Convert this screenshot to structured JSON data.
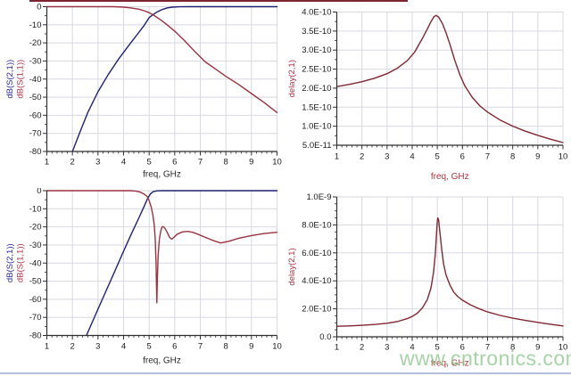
{
  "watermark": {
    "text": "www.cntronics.com",
    "color": "#92cb92"
  },
  "decor": {
    "top_line_color": "#7c2430",
    "bottom_line_color": "#b3bedd"
  },
  "colors": {
    "grid": "#d8d8e2",
    "axis": "#2f2f2f",
    "tick_text": "#1a1a1a",
    "trace_blue": "#1f1f78",
    "trace_red": "#9b3242",
    "trace_maroon": "#822633",
    "label_blue": "#2a2aa0",
    "label_red": "#b33044",
    "freq_label_dark": "#2b2b2b",
    "freq_label_red": "#b8323e"
  },
  "chart_data": [
    {
      "id": "highpass1-sparams",
      "type": "line",
      "xlabel": "freq, GHz",
      "xlabel_color": "#2b2b2b",
      "ylabels": [
        {
          "text": "dB(S(2,1))",
          "color": "#2a2aa0"
        },
        {
          "text": "dB(S(1,1))",
          "color": "#b33044"
        }
      ],
      "xlim": [
        1,
        10
      ],
      "ylim": [
        -80,
        0
      ],
      "grid": true,
      "xticks": [
        1,
        2,
        3,
        4,
        5,
        6,
        7,
        8,
        9,
        10
      ],
      "minor_x": 0.2,
      "minor_y": 5,
      "yticks": [
        {
          "v": 0,
          "label": "0"
        },
        {
          "v": -10,
          "label": "-10"
        },
        {
          "v": -20,
          "label": "-20"
        },
        {
          "v": -30,
          "label": "-30"
        },
        {
          "v": -40,
          "label": "-40"
        },
        {
          "v": -50,
          "label": "-50"
        },
        {
          "v": -60,
          "label": "-60"
        },
        {
          "v": -70,
          "label": "-70"
        },
        {
          "v": -80,
          "label": "-80"
        }
      ],
      "series": [
        {
          "name": "dB(S(2,1))",
          "color": "#1f1f78",
          "points": [
            [
              2.0,
              -80
            ],
            [
              2.3,
              -69
            ],
            [
              2.6,
              -58.5
            ],
            [
              3.0,
              -47
            ],
            [
              3.4,
              -37.5
            ],
            [
              3.8,
              -29
            ],
            [
              4.2,
              -21.5
            ],
            [
              4.5,
              -16
            ],
            [
              4.8,
              -10.5
            ],
            [
              5.0,
              -6
            ],
            [
              5.15,
              -4.4
            ],
            [
              5.3,
              -3.0
            ],
            [
              5.5,
              -1.6
            ],
            [
              5.7,
              -0.7
            ],
            [
              5.9,
              -0.25
            ],
            [
              6.2,
              -0.05
            ],
            [
              6.6,
              0
            ],
            [
              10,
              0
            ]
          ]
        },
        {
          "name": "dB(S(1,1))",
          "color": "#9b3242",
          "points": [
            [
              1,
              0
            ],
            [
              3.6,
              0
            ],
            [
              4.0,
              -0.25
            ],
            [
              4.3,
              -0.7
            ],
            [
              4.6,
              -1.4
            ],
            [
              4.8,
              -2.2
            ],
            [
              5.0,
              -3.3
            ],
            [
              5.2,
              -4.9
            ],
            [
              5.45,
              -7.3
            ],
            [
              5.7,
              -10
            ],
            [
              6.0,
              -13.5
            ],
            [
              6.4,
              -19
            ],
            [
              6.8,
              -25
            ],
            [
              7.2,
              -30.5
            ],
            [
              7.6,
              -34.5
            ],
            [
              8.0,
              -38.5
            ],
            [
              8.5,
              -43
            ],
            [
              9.0,
              -48
            ],
            [
              9.5,
              -53
            ],
            [
              10,
              -58.5
            ]
          ]
        }
      ]
    },
    {
      "id": "highpass1-delay",
      "type": "line",
      "xlabel": "freq, GHz",
      "xlabel_color": "#b8323e",
      "ylabels": [
        {
          "text": "delay(2,1)",
          "color": "#b33044"
        }
      ],
      "xlim": [
        1,
        10
      ],
      "ylim": [
        5e-11,
        4e-10
      ],
      "grid": true,
      "xticks": [
        1,
        2,
        3,
        4,
        5,
        6,
        7,
        8,
        9,
        10
      ],
      "minor_x": 0.2,
      "minor_y": 2.5e-11,
      "yticks": [
        {
          "v": 4e-10,
          "label": "4.0E-10"
        },
        {
          "v": 3.5e-10,
          "label": "3.5E-10"
        },
        {
          "v": 3e-10,
          "label": "3.0E-10"
        },
        {
          "v": 2.5e-10,
          "label": "2.5E-10"
        },
        {
          "v": 2e-10,
          "label": "2.0E-10"
        },
        {
          "v": 1.5e-10,
          "label": "1.5E-10"
        },
        {
          "v": 1e-10,
          "label": "1.0E-10"
        },
        {
          "v": 5e-11,
          "label": "5.0E-11"
        }
      ],
      "series": [
        {
          "name": "delay(2,1)",
          "color": "#822633",
          "points": [
            [
              1,
              2.04e-10
            ],
            [
              1.5,
              2.1e-10
            ],
            [
              2,
              2.17e-10
            ],
            [
              2.5,
              2.26e-10
            ],
            [
              3,
              2.38e-10
            ],
            [
              3.4,
              2.52e-10
            ],
            [
              3.8,
              2.72e-10
            ],
            [
              4.1,
              2.95e-10
            ],
            [
              4.4,
              3.3e-10
            ],
            [
              4.6,
              3.55e-10
            ],
            [
              4.75,
              3.75e-10
            ],
            [
              4.87,
              3.88e-10
            ],
            [
              4.95,
              3.91e-10
            ],
            [
              5.05,
              3.87e-10
            ],
            [
              5.2,
              3.7e-10
            ],
            [
              5.35,
              3.45e-10
            ],
            [
              5.5,
              3.15e-10
            ],
            [
              5.7,
              2.72e-10
            ],
            [
              5.9,
              2.35e-10
            ],
            [
              6.1,
              2.05e-10
            ],
            [
              6.4,
              1.75e-10
            ],
            [
              6.7,
              1.53e-10
            ],
            [
              7,
              1.37e-10
            ],
            [
              7.5,
              1.16e-10
            ],
            [
              8,
              1e-10
            ],
            [
              8.5,
              8.7e-11
            ],
            [
              9,
              7.6e-11
            ],
            [
              9.5,
              6.6e-11
            ],
            [
              10,
              5.7e-11
            ]
          ]
        }
      ]
    },
    {
      "id": "highpass2-sparams",
      "type": "line",
      "xlabel": "freq, GHz",
      "xlabel_color": "#2b2b2b",
      "ylabels": [
        {
          "text": "dB(S(2,1))",
          "color": "#2a2aa0"
        },
        {
          "text": "dB(S(1,1))",
          "color": "#b33044"
        }
      ],
      "xlim": [
        1,
        10
      ],
      "ylim": [
        -80,
        0
      ],
      "grid": true,
      "xticks": [
        1,
        2,
        3,
        4,
        5,
        6,
        7,
        8,
        9,
        10
      ],
      "minor_x": 0.2,
      "minor_y": 5,
      "yticks": [
        {
          "v": 0,
          "label": "0"
        },
        {
          "v": -10,
          "label": "-10"
        },
        {
          "v": -20,
          "label": "-20"
        },
        {
          "v": -30,
          "label": "-30"
        },
        {
          "v": -40,
          "label": "-40"
        },
        {
          "v": -50,
          "label": "-50"
        },
        {
          "v": -60,
          "label": "-60"
        },
        {
          "v": -70,
          "label": "-70"
        },
        {
          "v": -80,
          "label": "-80"
        }
      ],
      "series": [
        {
          "name": "dB(S(2,1))",
          "color": "#1f1f78",
          "points": [
            [
              2.55,
              -80
            ],
            [
              3.0,
              -65.5
            ],
            [
              3.5,
              -49.5
            ],
            [
              4.0,
              -33.5
            ],
            [
              4.3,
              -24
            ],
            [
              4.6,
              -15
            ],
            [
              4.8,
              -8.8
            ],
            [
              4.95,
              -4
            ],
            [
              5.05,
              -1.8
            ],
            [
              5.15,
              -0.6
            ],
            [
              5.3,
              -0.1
            ],
            [
              5.5,
              0
            ],
            [
              10,
              0
            ]
          ]
        },
        {
          "name": "dB(S(1,1))",
          "color": "#9b3242",
          "points": [
            [
              1,
              0
            ],
            [
              4.3,
              0
            ],
            [
              4.5,
              -0.3
            ],
            [
              4.65,
              -0.8
            ],
            [
              4.8,
              -1.8
            ],
            [
              4.92,
              -3.2
            ],
            [
              5.0,
              -5.5
            ],
            [
              5.08,
              -9
            ],
            [
              5.15,
              -14
            ],
            [
              5.2,
              -19
            ],
            [
              5.24,
              -27
            ],
            [
              5.27,
              -40
            ],
            [
              5.29,
              -55
            ],
            [
              5.3,
              -62
            ],
            [
              5.32,
              -50
            ],
            [
              5.35,
              -36
            ],
            [
              5.4,
              -27
            ],
            [
              5.45,
              -22.5
            ],
            [
              5.5,
              -20.2
            ],
            [
              5.55,
              -19.8
            ],
            [
              5.62,
              -20.8
            ],
            [
              5.7,
              -22.8
            ],
            [
              5.8,
              -25.8
            ],
            [
              5.88,
              -26.8
            ],
            [
              5.95,
              -26
            ],
            [
              6.1,
              -24
            ],
            [
              6.3,
              -22.8
            ],
            [
              6.5,
              -22.5
            ],
            [
              6.7,
              -23
            ],
            [
              6.9,
              -24
            ],
            [
              7.2,
              -25.8
            ],
            [
              7.5,
              -27.5
            ],
            [
              7.8,
              -28.9
            ],
            [
              8.1,
              -28
            ],
            [
              8.5,
              -26.3
            ],
            [
              9.0,
              -24.8
            ],
            [
              9.5,
              -23.7
            ],
            [
              10,
              -23.0
            ]
          ]
        }
      ]
    },
    {
      "id": "highpass2-delay",
      "type": "line",
      "xlabel": "freq, GHz",
      "xlabel_color": "#b8323e",
      "ylabels": [
        {
          "text": "delay(2,1)",
          "color": "#b33044"
        }
      ],
      "xlim": [
        1,
        10
      ],
      "ylim": [
        0,
        1e-09
      ],
      "grid": true,
      "xticks": [
        1,
        2,
        3,
        4,
        5,
        6,
        7,
        8,
        9,
        10
      ],
      "minor_x": 0.2,
      "minor_y": 5e-11,
      "yticks": [
        {
          "v": 1e-09,
          "label": "1.0E-9"
        },
        {
          "v": 8e-10,
          "label": "8.0E-10"
        },
        {
          "v": 6e-10,
          "label": "6.0E-10"
        },
        {
          "v": 4e-10,
          "label": "4.0E-10"
        },
        {
          "v": 2e-10,
          "label": "2.0E-10"
        },
        {
          "v": 0,
          "label": "0.0"
        }
      ],
      "series": [
        {
          "name": "delay(2,1)",
          "color": "#822633",
          "points": [
            [
              1,
              7.5e-11
            ],
            [
              1.5,
              7.8e-11
            ],
            [
              2,
              8.2e-11
            ],
            [
              2.5,
              8.8e-11
            ],
            [
              3,
              9.7e-11
            ],
            [
              3.4,
              1.08e-10
            ],
            [
              3.8,
              1.3e-10
            ],
            [
              4.0,
              1.45e-10
            ],
            [
              4.2,
              1.68e-10
            ],
            [
              4.4,
              2.05e-10
            ],
            [
              4.6,
              2.65e-10
            ],
            [
              4.75,
              3.5e-10
            ],
            [
              4.85,
              4.6e-10
            ],
            [
              4.92,
              5.9e-10
            ],
            [
              4.97,
              7.4e-10
            ],
            [
              5.0,
              8.3e-10
            ],
            [
              5.02,
              8.5e-10
            ],
            [
              5.05,
              8.35e-10
            ],
            [
              5.1,
              7.5e-10
            ],
            [
              5.17,
              6.3e-10
            ],
            [
              5.25,
              5.2e-10
            ],
            [
              5.35,
              4.4e-10
            ],
            [
              5.5,
              3.7e-10
            ],
            [
              5.65,
              3.2e-10
            ],
            [
              5.8,
              2.9e-10
            ],
            [
              6.0,
              2.62e-10
            ],
            [
              6.3,
              2.3e-10
            ],
            [
              6.6,
              2.05e-10
            ],
            [
              7.0,
              1.78e-10
            ],
            [
              7.5,
              1.53e-10
            ],
            [
              8.0,
              1.33e-10
            ],
            [
              8.5,
              1.17e-10
            ],
            [
              9.0,
              1.03e-10
            ],
            [
              9.5,
              9e-11
            ],
            [
              10,
              7.8e-11
            ]
          ]
        }
      ]
    }
  ]
}
